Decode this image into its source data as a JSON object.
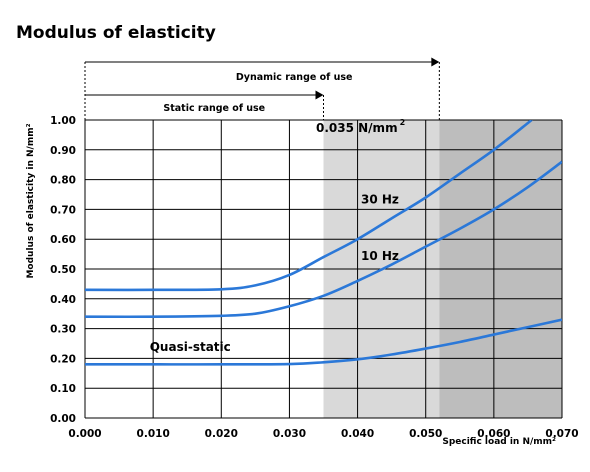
{
  "chart_data": {
    "type": "line",
    "title": "Modulus of elasticity",
    "xlabel": "Specific load in N/mm²",
    "ylabel": "Modulus of elasticity in N/mm²",
    "xlim": [
      0,
      0.07
    ],
    "ylim": [
      0,
      1.0
    ],
    "x_ticks": [
      "0.000",
      "0.010",
      "0.020",
      "0.030",
      "0.040",
      "0.050",
      "0.060",
      "0.070"
    ],
    "y_ticks": [
      "0.00",
      "0.10",
      "0.20",
      "0.30",
      "0.40",
      "0.50",
      "0.60",
      "0.70",
      "0.80",
      "0.90",
      "1.00"
    ],
    "grid": true,
    "series": [
      {
        "name": "30 Hz",
        "color": "#2b78d8",
        "points": [
          [
            0.0,
            0.43
          ],
          [
            0.01,
            0.43
          ],
          [
            0.02,
            0.432
          ],
          [
            0.025,
            0.445
          ],
          [
            0.03,
            0.48
          ],
          [
            0.035,
            0.54
          ],
          [
            0.04,
            0.6
          ],
          [
            0.045,
            0.67
          ],
          [
            0.05,
            0.74
          ],
          [
            0.055,
            0.82
          ],
          [
            0.06,
            0.9
          ],
          [
            0.065,
            0.99
          ],
          [
            0.0655,
            1.0
          ]
        ]
      },
      {
        "name": "10 Hz",
        "color": "#2b78d8",
        "points": [
          [
            0.0,
            0.34
          ],
          [
            0.01,
            0.34
          ],
          [
            0.02,
            0.343
          ],
          [
            0.025,
            0.35
          ],
          [
            0.03,
            0.375
          ],
          [
            0.035,
            0.41
          ],
          [
            0.04,
            0.46
          ],
          [
            0.045,
            0.515
          ],
          [
            0.05,
            0.575
          ],
          [
            0.055,
            0.635
          ],
          [
            0.06,
            0.7
          ],
          [
            0.065,
            0.775
          ],
          [
            0.07,
            0.86
          ]
        ]
      },
      {
        "name": "Quasi-static",
        "color": "#2b78d8",
        "points": [
          [
            0.0,
            0.18
          ],
          [
            0.01,
            0.18
          ],
          [
            0.02,
            0.18
          ],
          [
            0.03,
            0.181
          ],
          [
            0.035,
            0.187
          ],
          [
            0.04,
            0.197
          ],
          [
            0.045,
            0.213
          ],
          [
            0.05,
            0.233
          ],
          [
            0.055,
            0.255
          ],
          [
            0.06,
            0.28
          ],
          [
            0.065,
            0.305
          ],
          [
            0.07,
            0.33
          ]
        ]
      }
    ],
    "regions": [
      {
        "from": 0.035,
        "to": 0.052,
        "color": "#d9d9d9"
      },
      {
        "from": 0.052,
        "to": 0.07,
        "color": "#bdbdbd"
      }
    ],
    "ranges": [
      {
        "label": "Dynamic range of use",
        "from": 0.0,
        "to": 0.052
      },
      {
        "label": "Static range of use",
        "from": 0.0,
        "to": 0.035
      }
    ],
    "annotations": [
      {
        "text": "0.035 N/mm",
        "sup": "2",
        "x": 0.0339,
        "y": 0.96
      },
      {
        "text": "30 Hz",
        "x": 0.0405,
        "y": 0.72
      },
      {
        "text": "10 Hz",
        "x": 0.0405,
        "y": 0.53
      },
      {
        "text": "Quasi-static",
        "x": 0.0095,
        "y": 0.225
      }
    ]
  }
}
